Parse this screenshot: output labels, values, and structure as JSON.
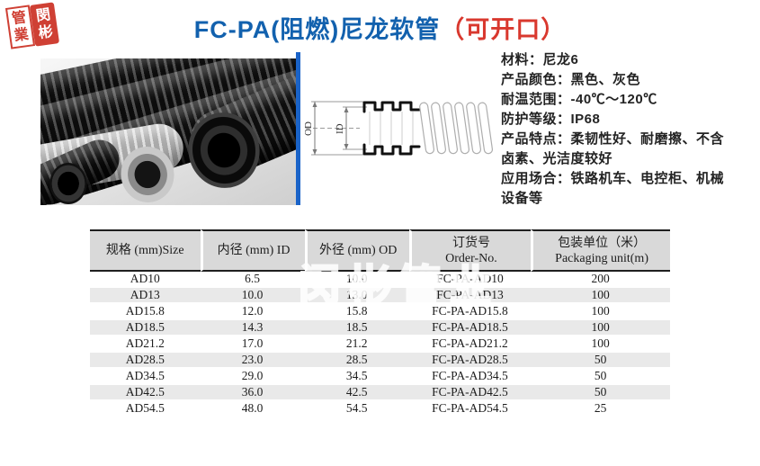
{
  "page": {
    "title_main": "FC-PA(阻燃)尼龙软管",
    "title_suffix": "（可开口）"
  },
  "logo": {
    "stamp_left_top": "管",
    "stamp_left_bottom": "業",
    "stamp_right_top": "閔",
    "stamp_right_bottom": "彬"
  },
  "diagram": {
    "od_label": "OD",
    "id_label": "ID"
  },
  "specs": {
    "lines": [
      "材料：尼龙6",
      "产品颜色：黑色、灰色",
      "耐温范围：-40℃～120℃",
      "防护等级：IP68",
      "产品特点：柔韧性好、耐磨擦、不含",
      "卤素、光洁度较好",
      "应用场合：铁路机车、电控柜、机械",
      "设备等"
    ]
  },
  "watermark": {
    "text": "闵彬管业"
  },
  "table": {
    "headers": [
      {
        "line1": "规格 (mm)Size",
        "line2": ""
      },
      {
        "line1": "内径 (mm) ID",
        "line2": ""
      },
      {
        "line1": "外径 (mm) OD",
        "line2": ""
      },
      {
        "line1": "订货号",
        "line2": "Order-No."
      },
      {
        "line1": "包装单位（米）",
        "line2": "Packaging unit(m)"
      }
    ],
    "rows": [
      [
        "AD10",
        "6.5",
        "10.0",
        "FC-PA-AD10",
        "200"
      ],
      [
        "AD13",
        "10.0",
        "13.0",
        "FC-PA-AD13",
        "100"
      ],
      [
        "AD15.8",
        "12.0",
        "15.8",
        "FC-PA-AD15.8",
        "100"
      ],
      [
        "AD18.5",
        "14.3",
        "18.5",
        "FC-PA-AD18.5",
        "100"
      ],
      [
        "AD21.2",
        "17.0",
        "21.2",
        "FC-PA-AD21.2",
        "100"
      ],
      [
        "AD28.5",
        "23.0",
        "28.5",
        "FC-PA-AD28.5",
        "50"
      ],
      [
        "AD34.5",
        "29.0",
        "34.5",
        "FC-PA-AD34.5",
        "50"
      ],
      [
        "AD42.5",
        "36.0",
        "42.5",
        "FC-PA-AD42.5",
        "50"
      ],
      [
        "AD54.5",
        "48.0",
        "54.5",
        "FC-PA-AD54.5",
        "25"
      ]
    ]
  },
  "colors": {
    "title_blue": "#1261ae",
    "accent_red": "#d9382e",
    "photo_bar_blue": "#1a63c8",
    "seal_red": "#cf4034",
    "table_header_gray": "#d9d9d9",
    "table_alt_row_gray": "#e9e9e9"
  }
}
